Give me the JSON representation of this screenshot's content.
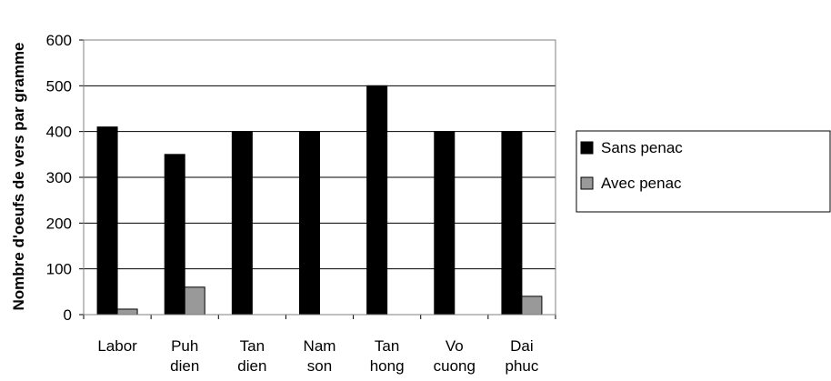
{
  "chart_data": {
    "type": "bar",
    "categories": [
      [
        "Labor"
      ],
      [
        "Puh",
        "dien"
      ],
      [
        "Tan",
        "dien"
      ],
      [
        "Nam",
        "son"
      ],
      [
        "Tan",
        "hong"
      ],
      [
        "Vo",
        "cuong"
      ],
      [
        "Dai",
        "phuc"
      ]
    ],
    "series": [
      {
        "name": "Sans penac",
        "values": [
          410,
          350,
          400,
          400,
          500,
          400,
          400
        ],
        "color": "#000000"
      },
      {
        "name": "Avec penac",
        "values": [
          12,
          60,
          0,
          0,
          0,
          0,
          40
        ],
        "color": "#999999"
      }
    ],
    "title": "",
    "xlabel": "",
    "ylabel": "Nombre d'oeufs de vers par gramme",
    "ylim": [
      0,
      600
    ],
    "yticks": [
      "0",
      "100",
      "200",
      "300",
      "400",
      "500",
      "600"
    ],
    "grid": true,
    "legend_position": "right"
  }
}
